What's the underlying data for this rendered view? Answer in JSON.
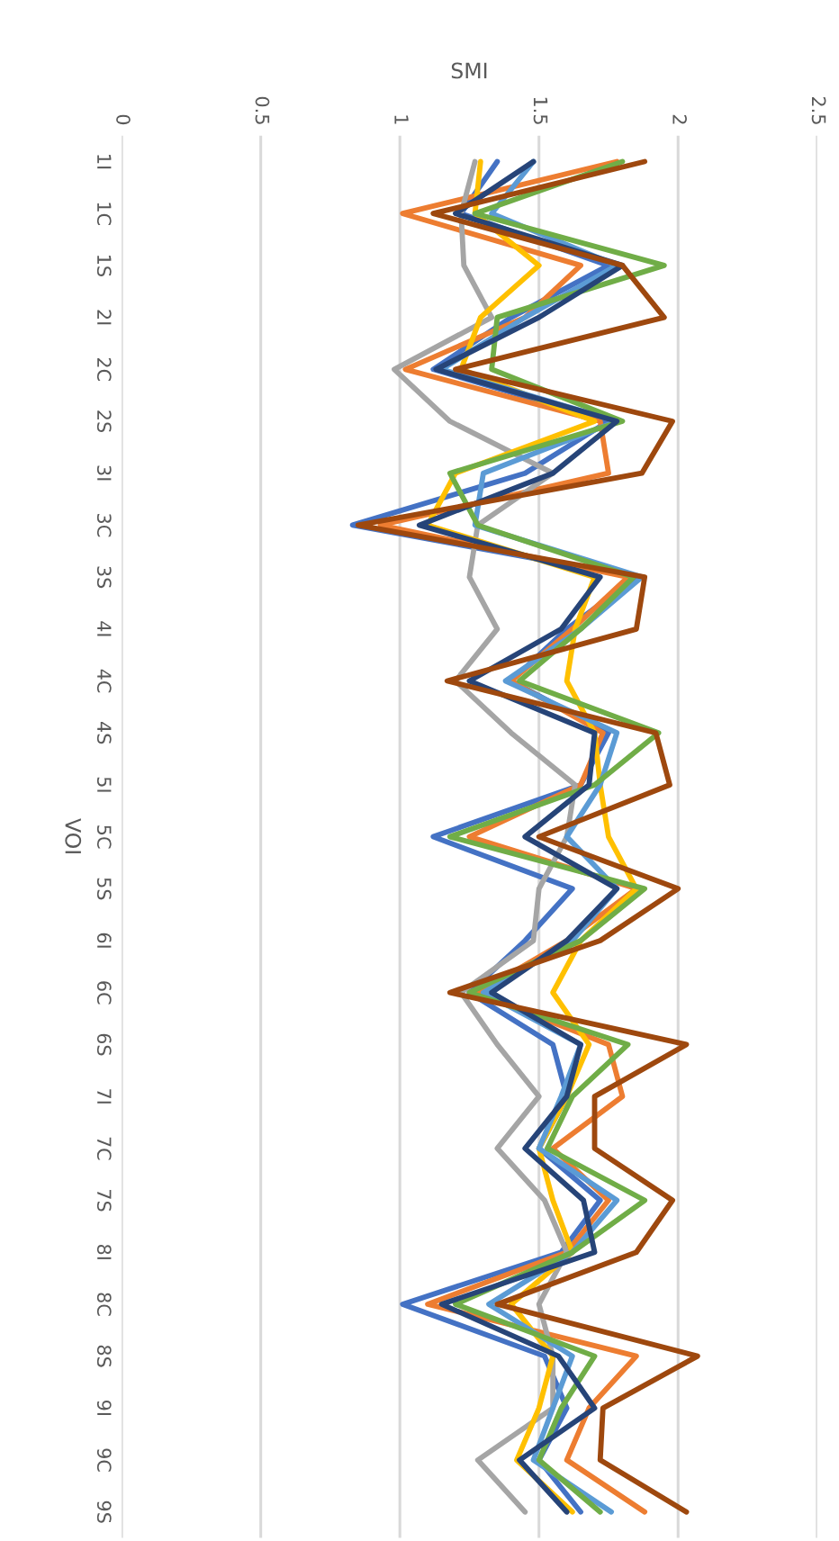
{
  "chart_data": {
    "type": "line",
    "orientation": "horizontal",
    "xlabel": "SMI",
    "ylabel": "VOI",
    "categories": [
      "1I",
      "1C",
      "1S",
      "2I",
      "2C",
      "2S",
      "3I",
      "3C",
      "3S",
      "4I",
      "4C",
      "4S",
      "5I",
      "5C",
      "5S",
      "6I",
      "6C",
      "6S",
      "7I",
      "7C",
      "7S",
      "8I",
      "8C",
      "8S",
      "9I",
      "9C",
      "9S"
    ],
    "series": [
      {
        "color": "#4472c4",
        "values": [
          1.35,
          1.22,
          1.75,
          1.4,
          1.12,
          1.75,
          1.45,
          0.83,
          1.85,
          1.6,
          1.4,
          1.75,
          1.65,
          1.12,
          1.62,
          1.45,
          1.25,
          1.55,
          1.6,
          1.5,
          1.72,
          1.58,
          1.01,
          1.52,
          1.6,
          1.5,
          1.65
        ]
      },
      {
        "color": "#ed7d31",
        "values": [
          1.78,
          1.01,
          1.65,
          1.45,
          1.02,
          1.72,
          1.75,
          0.93,
          1.82,
          1.62,
          1.4,
          1.73,
          1.65,
          1.25,
          1.85,
          1.6,
          1.28,
          1.75,
          1.8,
          1.55,
          1.75,
          1.6,
          1.1,
          1.85,
          1.68,
          1.6,
          1.88
        ]
      },
      {
        "color": "#a5a5a5",
        "values": [
          1.27,
          1.22,
          1.23,
          1.33,
          0.98,
          1.18,
          1.55,
          1.28,
          1.25,
          1.35,
          1.2,
          1.4,
          1.63,
          1.6,
          1.5,
          1.48,
          1.22,
          1.35,
          1.5,
          1.35,
          1.52,
          1.6,
          1.5,
          1.55,
          1.55,
          1.28,
          1.45
        ]
      },
      {
        "color": "#ffc000",
        "values": [
          1.29,
          1.27,
          1.5,
          1.29,
          1.22,
          1.7,
          1.2,
          1.1,
          1.7,
          1.63,
          1.6,
          1.7,
          1.72,
          1.75,
          1.85,
          1.65,
          1.55,
          1.68,
          1.6,
          1.5,
          1.55,
          1.62,
          1.4,
          1.55,
          1.5,
          1.42,
          1.62
        ]
      },
      {
        "color": "#5b9bd5",
        "values": [
          1.48,
          1.33,
          1.78,
          1.45,
          1.15,
          1.78,
          1.3,
          1.27,
          1.87,
          1.65,
          1.38,
          1.78,
          1.72,
          1.6,
          1.78,
          1.62,
          1.3,
          1.65,
          1.58,
          1.5,
          1.78,
          1.62,
          1.32,
          1.62,
          1.55,
          1.48,
          1.76
        ]
      },
      {
        "color": "#70ad47",
        "values": [
          1.8,
          1.27,
          1.95,
          1.35,
          1.33,
          1.8,
          1.18,
          1.28,
          1.84,
          1.65,
          1.43,
          1.93,
          1.7,
          1.18,
          1.88,
          1.65,
          1.25,
          1.82,
          1.62,
          1.53,
          1.88,
          1.62,
          1.2,
          1.7,
          1.58,
          1.5,
          1.72
        ]
      },
      {
        "color": "#264478",
        "values": [
          1.48,
          1.2,
          1.8,
          1.5,
          1.13,
          1.78,
          1.55,
          1.07,
          1.72,
          1.58,
          1.25,
          1.7,
          1.68,
          1.45,
          1.78,
          1.6,
          1.33,
          1.65,
          1.6,
          1.45,
          1.66,
          1.7,
          1.15,
          1.57,
          1.7,
          1.43,
          1.6
        ]
      },
      {
        "color": "#9e480e",
        "values": [
          1.88,
          1.12,
          1.8,
          1.95,
          1.2,
          1.98,
          1.87,
          0.85,
          1.88,
          1.85,
          1.17,
          1.92,
          1.97,
          1.5,
          2.0,
          1.72,
          1.18,
          2.03,
          1.7,
          1.7,
          1.98,
          1.85,
          1.35,
          2.07,
          1.73,
          1.72,
          2.03
        ]
      }
    ],
    "xlim": [
      0,
      2.5
    ],
    "xticks": [
      0,
      0.5,
      1,
      1.5,
      2,
      2.5
    ],
    "grid": "x",
    "legend": false,
    "marker": "none",
    "line_style": "solid"
  }
}
